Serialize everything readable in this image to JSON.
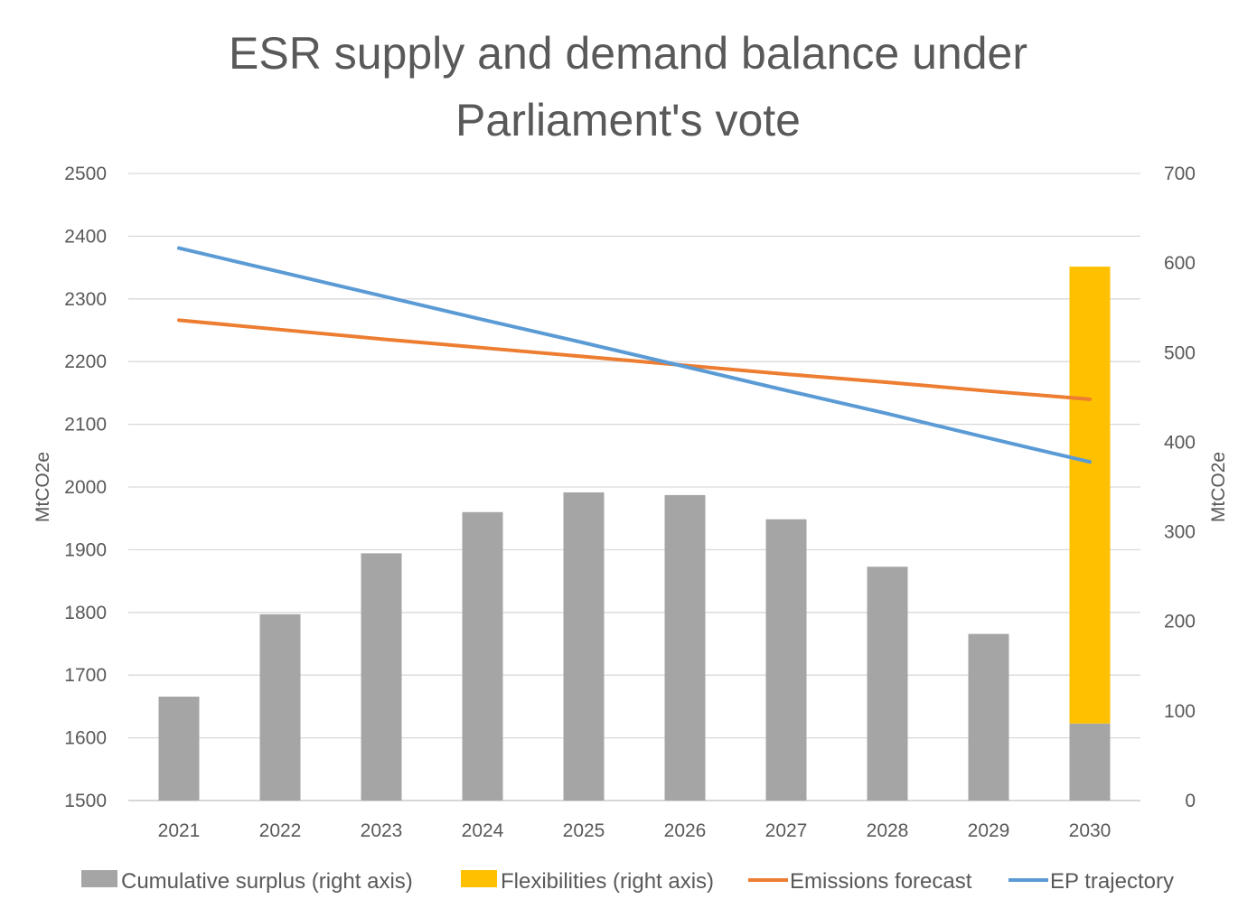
{
  "chart_data": {
    "type": "bar",
    "title": [
      "ESR supply and demand balance under",
      "Parliament's vote"
    ],
    "categories": [
      "2021",
      "2022",
      "2023",
      "2024",
      "2025",
      "2026",
      "2027",
      "2028",
      "2029",
      "2030"
    ],
    "y_left": {
      "label": "MtCO2e",
      "range": [
        1500,
        2500
      ],
      "ticks": [
        1500,
        1600,
        1700,
        1800,
        1900,
        2000,
        2100,
        2200,
        2300,
        2400,
        2500
      ]
    },
    "y_right": {
      "label": "MtCO2e",
      "range": [
        0,
        700
      ],
      "ticks": [
        0,
        100,
        200,
        300,
        400,
        500,
        600,
        700
      ]
    },
    "grid": true,
    "legend_position": "bottom",
    "series": [
      {
        "name": "Cumulative surplus (right axis)",
        "type": "bar",
        "axis": "right",
        "stack": "a",
        "color": "#a5a5a5",
        "values": [
          116,
          208,
          276,
          322,
          344,
          341,
          314,
          261,
          186,
          86
        ]
      },
      {
        "name": "Flexibilities (right axis)",
        "type": "bar",
        "axis": "right",
        "stack": "a",
        "color": "#ffc000",
        "values": [
          0,
          0,
          0,
          0,
          0,
          0,
          0,
          0,
          0,
          510
        ]
      },
      {
        "name": "Emissions forecast",
        "type": "line",
        "axis": "left",
        "color": "#ed7d31",
        "values": [
          2266,
          2251,
          2236,
          2222,
          2208,
          2194,
          2180,
          2167,
          2153,
          2140
        ]
      },
      {
        "name": "EP trajectory",
        "type": "line",
        "axis": "left",
        "color": "#5b9bd5",
        "values": [
          2381,
          2343,
          2305,
          2267,
          2230,
          2192,
          2154,
          2117,
          2078,
          2040
        ]
      }
    ]
  }
}
